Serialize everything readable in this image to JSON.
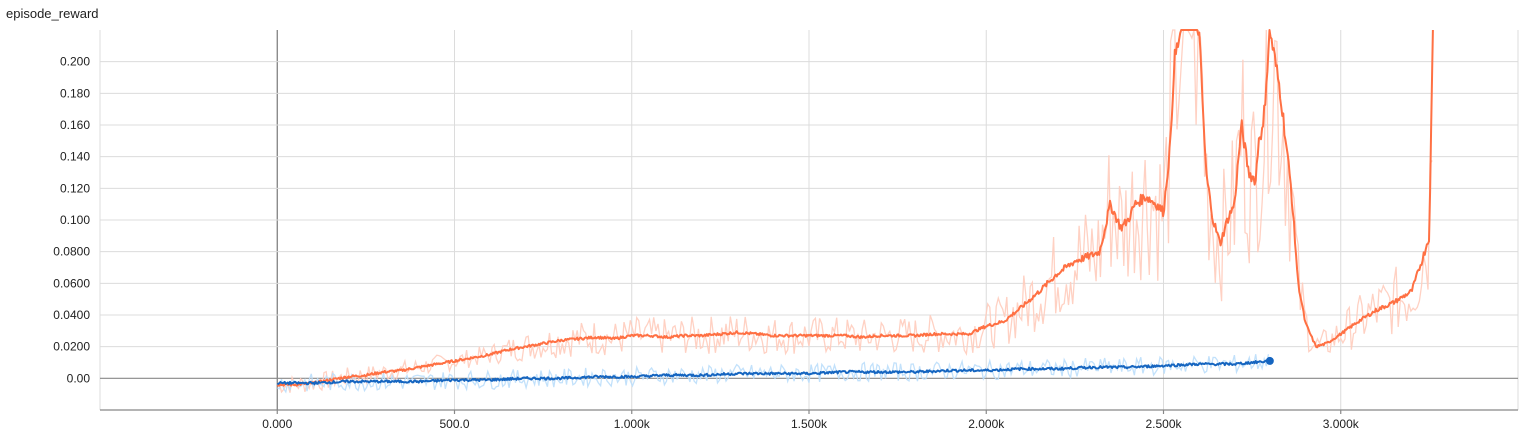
{
  "title": "episode_reward",
  "chart_data": {
    "type": "line",
    "title": "episode_reward",
    "xlabel": "",
    "ylabel": "",
    "xlim": [
      -500,
      3500
    ],
    "ylim": [
      -0.02,
      0.22
    ],
    "x_ticks": [
      0,
      500,
      1000,
      1500,
      2000,
      2500,
      3000
    ],
    "x_tick_labels": [
      "0.000",
      "500.0",
      "1.000k",
      "1.500k",
      "2.000k",
      "2.500k",
      "3.000k"
    ],
    "y_ticks": [
      0,
      0.02,
      0.04,
      0.06,
      0.08,
      0.1,
      0.12,
      0.14,
      0.16,
      0.18,
      0.2
    ],
    "y_tick_labels": [
      "0.00",
      "0.0200",
      "0.0400",
      "0.0600",
      "0.0800",
      "0.100",
      "0.120",
      "0.140",
      "0.160",
      "0.180",
      "0.200"
    ],
    "grid": true,
    "legend": "none",
    "series": [
      {
        "color": "#ff7043",
        "raw_color": "#ffccbc",
        "x": [
          0,
          50,
          100,
          150,
          200,
          250,
          300,
          350,
          400,
          450,
          500,
          550,
          600,
          650,
          700,
          750,
          800,
          850,
          900,
          950,
          1000,
          1050,
          1100,
          1150,
          1200,
          1250,
          1300,
          1350,
          1400,
          1450,
          1500,
          1550,
          1600,
          1650,
          1700,
          1750,
          1800,
          1850,
          1900,
          1950,
          2000,
          2050,
          2100,
          2150,
          2200,
          2250,
          2300,
          2320,
          2350,
          2380,
          2400,
          2420,
          2450,
          2480,
          2500,
          2520,
          2530,
          2550,
          2580,
          2600,
          2620,
          2640,
          2660,
          2680,
          2700,
          2720,
          2740,
          2760,
          2770,
          2780,
          2800,
          2830,
          2860,
          2880,
          2900,
          2930,
          2960,
          3000,
          3050,
          3100,
          3150,
          3200,
          3230,
          3250,
          3260
        ],
        "values": [
          -0.004,
          -0.004,
          -0.003,
          -0.001,
          0.001,
          0.002,
          0.004,
          0.005,
          0.007,
          0.009,
          0.011,
          0.013,
          0.015,
          0.018,
          0.02,
          0.022,
          0.024,
          0.025,
          0.026,
          0.025,
          0.027,
          0.027,
          0.026,
          0.027,
          0.027,
          0.028,
          0.029,
          0.028,
          0.027,
          0.027,
          0.027,
          0.027,
          0.027,
          0.026,
          0.027,
          0.027,
          0.027,
          0.028,
          0.028,
          0.028,
          0.033,
          0.036,
          0.045,
          0.055,
          0.066,
          0.074,
          0.078,
          0.08,
          0.11,
          0.095,
          0.1,
          0.11,
          0.115,
          0.11,
          0.105,
          0.15,
          0.2,
          0.22,
          0.24,
          0.22,
          0.13,
          0.1,
          0.085,
          0.1,
          0.11,
          0.16,
          0.13,
          0.125,
          0.155,
          0.155,
          0.22,
          0.18,
          0.12,
          0.06,
          0.035,
          0.02,
          0.022,
          0.028,
          0.036,
          0.043,
          0.048,
          0.055,
          0.075,
          0.09,
          0.22
        ]
      },
      {
        "color": "#1565c0",
        "raw_color": "#bbdefb",
        "x": [
          0,
          100,
          200,
          300,
          400,
          500,
          600,
          700,
          800,
          900,
          1000,
          1100,
          1200,
          1300,
          1400,
          1500,
          1600,
          1700,
          1800,
          1900,
          2000,
          2100,
          2200,
          2300,
          2400,
          2500,
          2600,
          2700,
          2800
        ],
        "values": [
          -0.003,
          -0.003,
          -0.002,
          -0.002,
          -0.002,
          -0.001,
          -0.001,
          0.0,
          0.0,
          0.001,
          0.001,
          0.002,
          0.002,
          0.003,
          0.003,
          0.003,
          0.004,
          0.004,
          0.004,
          0.005,
          0.005,
          0.006,
          0.006,
          0.007,
          0.007,
          0.008,
          0.009,
          0.009,
          0.011
        ]
      }
    ]
  }
}
